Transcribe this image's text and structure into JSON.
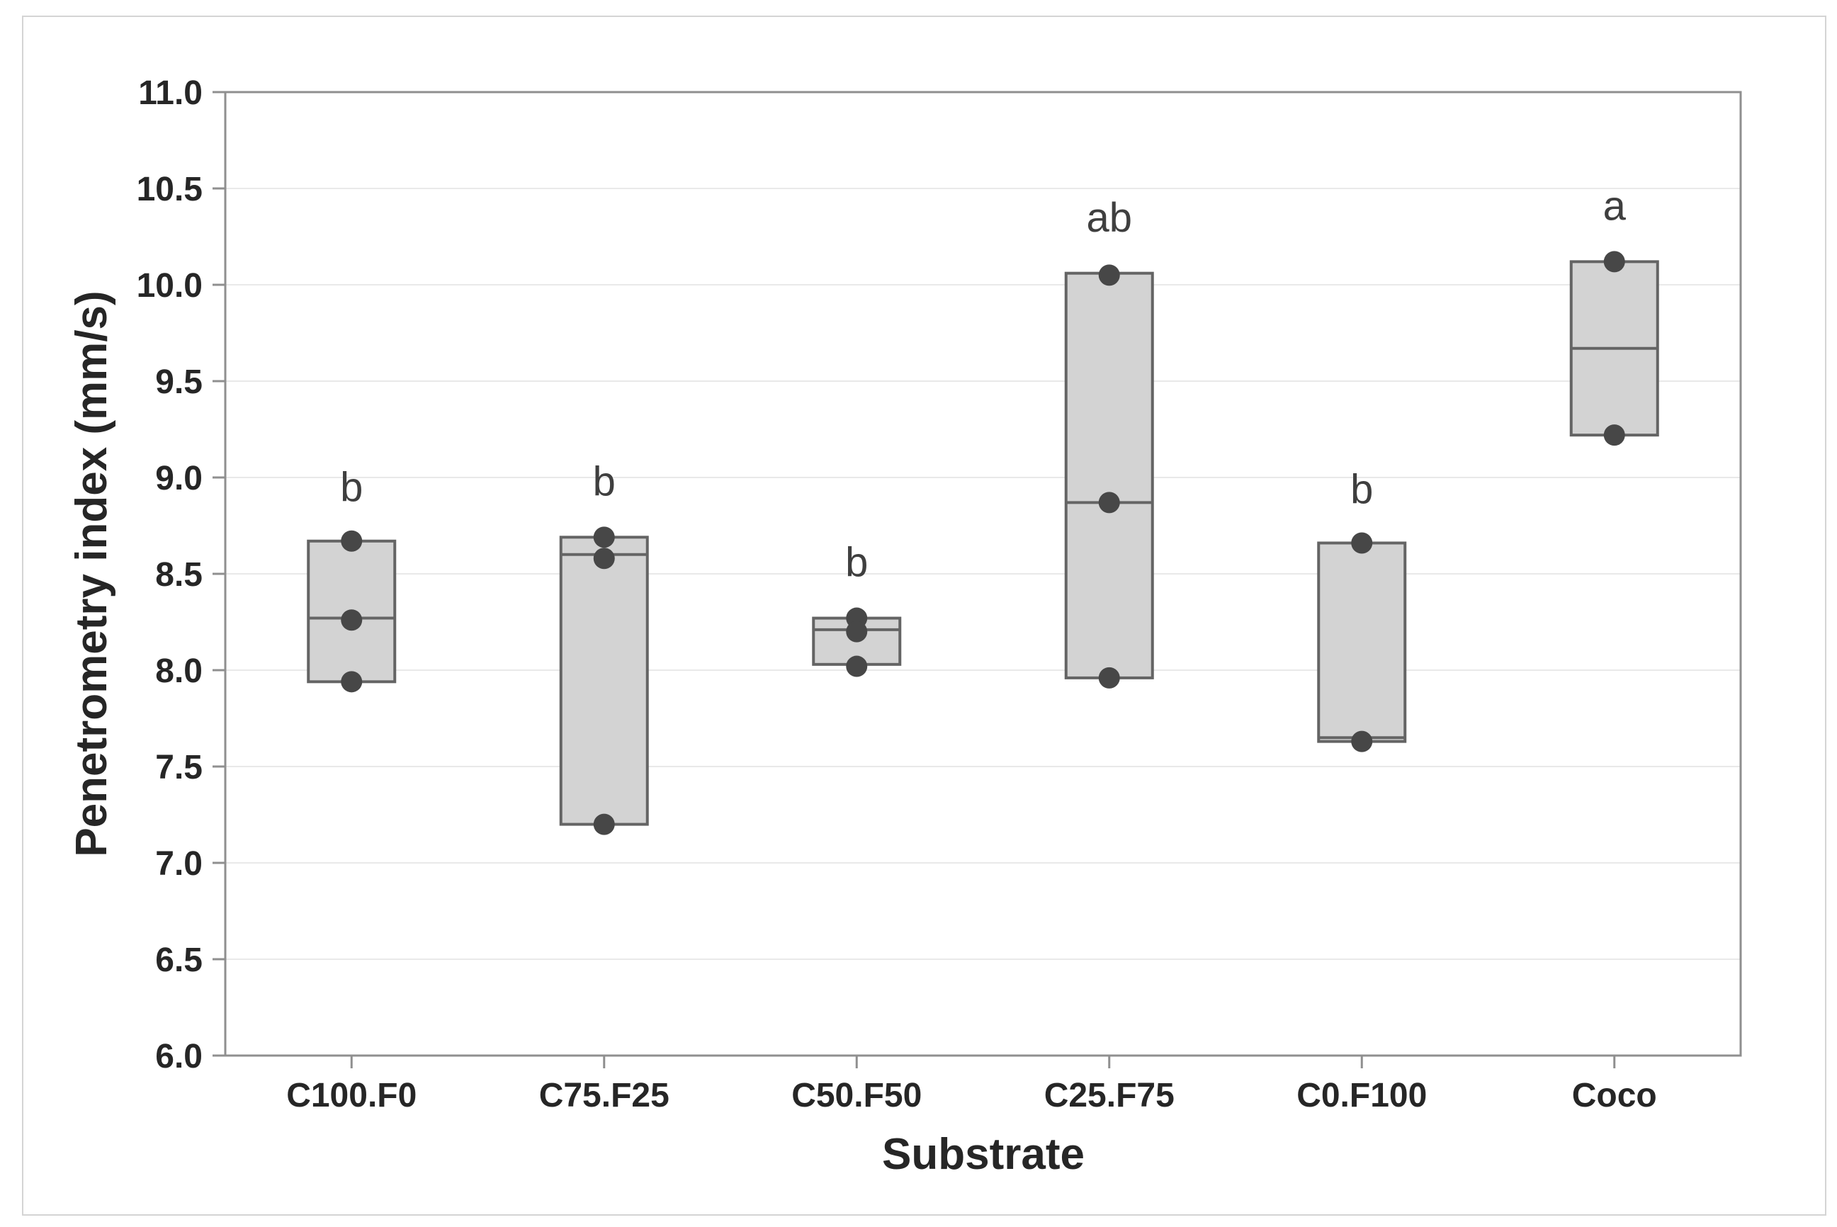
{
  "chart_data": {
    "type": "boxplot",
    "title": "",
    "xlabel": "Substrate",
    "ylabel": "Penetrometry index (mm/s)",
    "ylim": [
      6.0,
      11.0
    ],
    "ytick_step": 0.5,
    "ytick_labels": [
      "6.0",
      "6.5",
      "7.0",
      "7.5",
      "8.0",
      "8.5",
      "9.0",
      "9.5",
      "10.0",
      "10.5",
      "11.0"
    ],
    "grid": "horizontal-light-gridlines-every-0.5",
    "legend": "none",
    "categories": [
      "C100.F0",
      "C75.F25",
      "C50.F50",
      "C25.F75",
      "C0.F100",
      "Coco"
    ],
    "boxes": [
      {
        "category": "C100.F0",
        "q1": 7.94,
        "median": 8.27,
        "q3": 8.67,
        "points": [
          8.67,
          8.26,
          7.94
        ],
        "sig_letter": "b",
        "sig_letter_y": 8.95
      },
      {
        "category": "C75.F25",
        "q1": 7.2,
        "median": 8.6,
        "q3": 8.69,
        "points": [
          8.69,
          8.58,
          7.2
        ],
        "sig_letter": "b",
        "sig_letter_y": 8.98
      },
      {
        "category": "C50.F50",
        "q1": 8.03,
        "median": 8.21,
        "q3": 8.27,
        "points": [
          8.27,
          8.2,
          8.02
        ],
        "sig_letter": "b",
        "sig_letter_y": 8.56
      },
      {
        "category": "C25.F75",
        "q1": 7.96,
        "median": 8.87,
        "q3": 10.06,
        "points": [
          10.05,
          8.87,
          7.96
        ],
        "sig_letter": "ab",
        "sig_letter_y": 10.35
      },
      {
        "category": "C0.F100",
        "q1": 7.63,
        "median": 7.65,
        "q3": 8.66,
        "points": [
          8.66,
          7.63
        ],
        "sig_letter": "b",
        "sig_letter_y": 8.94
      },
      {
        "category": "Coco",
        "q1": 9.22,
        "median": 9.67,
        "q3": 10.12,
        "points": [
          10.12,
          9.22
        ],
        "sig_letter": "a",
        "sig_letter_y": 10.41
      }
    ],
    "colors": {
      "background": "#ffffff",
      "frame_border": "#d4d4d4",
      "plot_border": "#8f8f8f",
      "gridline": "#e9e9e9",
      "box_fill": "#d3d3d3",
      "box_border": "#646464",
      "point": "#474747",
      "tick_text": "#262626",
      "letter_text": "#3f3f3f"
    }
  }
}
